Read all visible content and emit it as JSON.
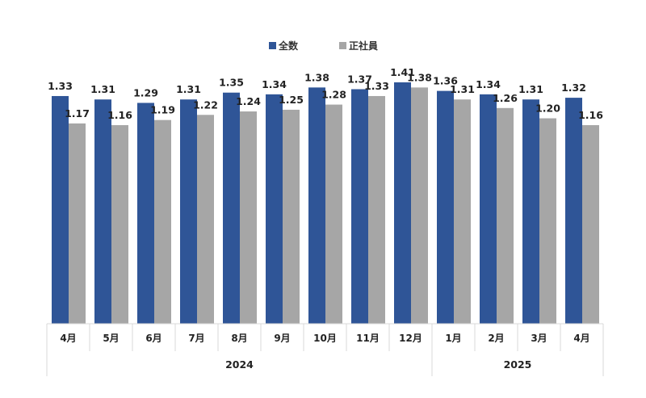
{
  "chart_data": {
    "type": "bar",
    "categories": [
      "4月",
      "5月",
      "6月",
      "7月",
      "8月",
      "9月",
      "10月",
      "11月",
      "12月",
      "1月",
      "2月",
      "3月",
      "4月"
    ],
    "groups": [
      {
        "label": "2024",
        "count": 9
      },
      {
        "label": "2025",
        "count": 4
      }
    ],
    "series": [
      {
        "name": "全数",
        "color": "#2F5597",
        "values": [
          1.33,
          1.31,
          1.29,
          1.31,
          1.35,
          1.34,
          1.38,
          1.37,
          1.41,
          1.36,
          1.34,
          1.31,
          1.32
        ],
        "labels": [
          "1.33",
          "1.31",
          "1.29",
          "1.31",
          "1.35",
          "1.34",
          "1.38",
          "1.37",
          "1.41",
          "1.36",
          "1.34",
          "1.31",
          "1.32"
        ]
      },
      {
        "name": "正社員",
        "color": "#A6A6A6",
        "values": [
          1.17,
          1.16,
          1.19,
          1.22,
          1.24,
          1.25,
          1.28,
          1.33,
          1.38,
          1.31,
          1.26,
          1.2,
          1.16
        ],
        "labels": [
          "1.17",
          "1.16",
          "1.19",
          "1.22",
          "1.24",
          "1.25",
          "1.28",
          "1.33",
          "1.38",
          "1.31",
          "1.26",
          "1.20",
          "1.16"
        ]
      }
    ],
    "ylim": [
      0,
      1.41
    ],
    "legend_position": "top-center",
    "grid": false
  }
}
